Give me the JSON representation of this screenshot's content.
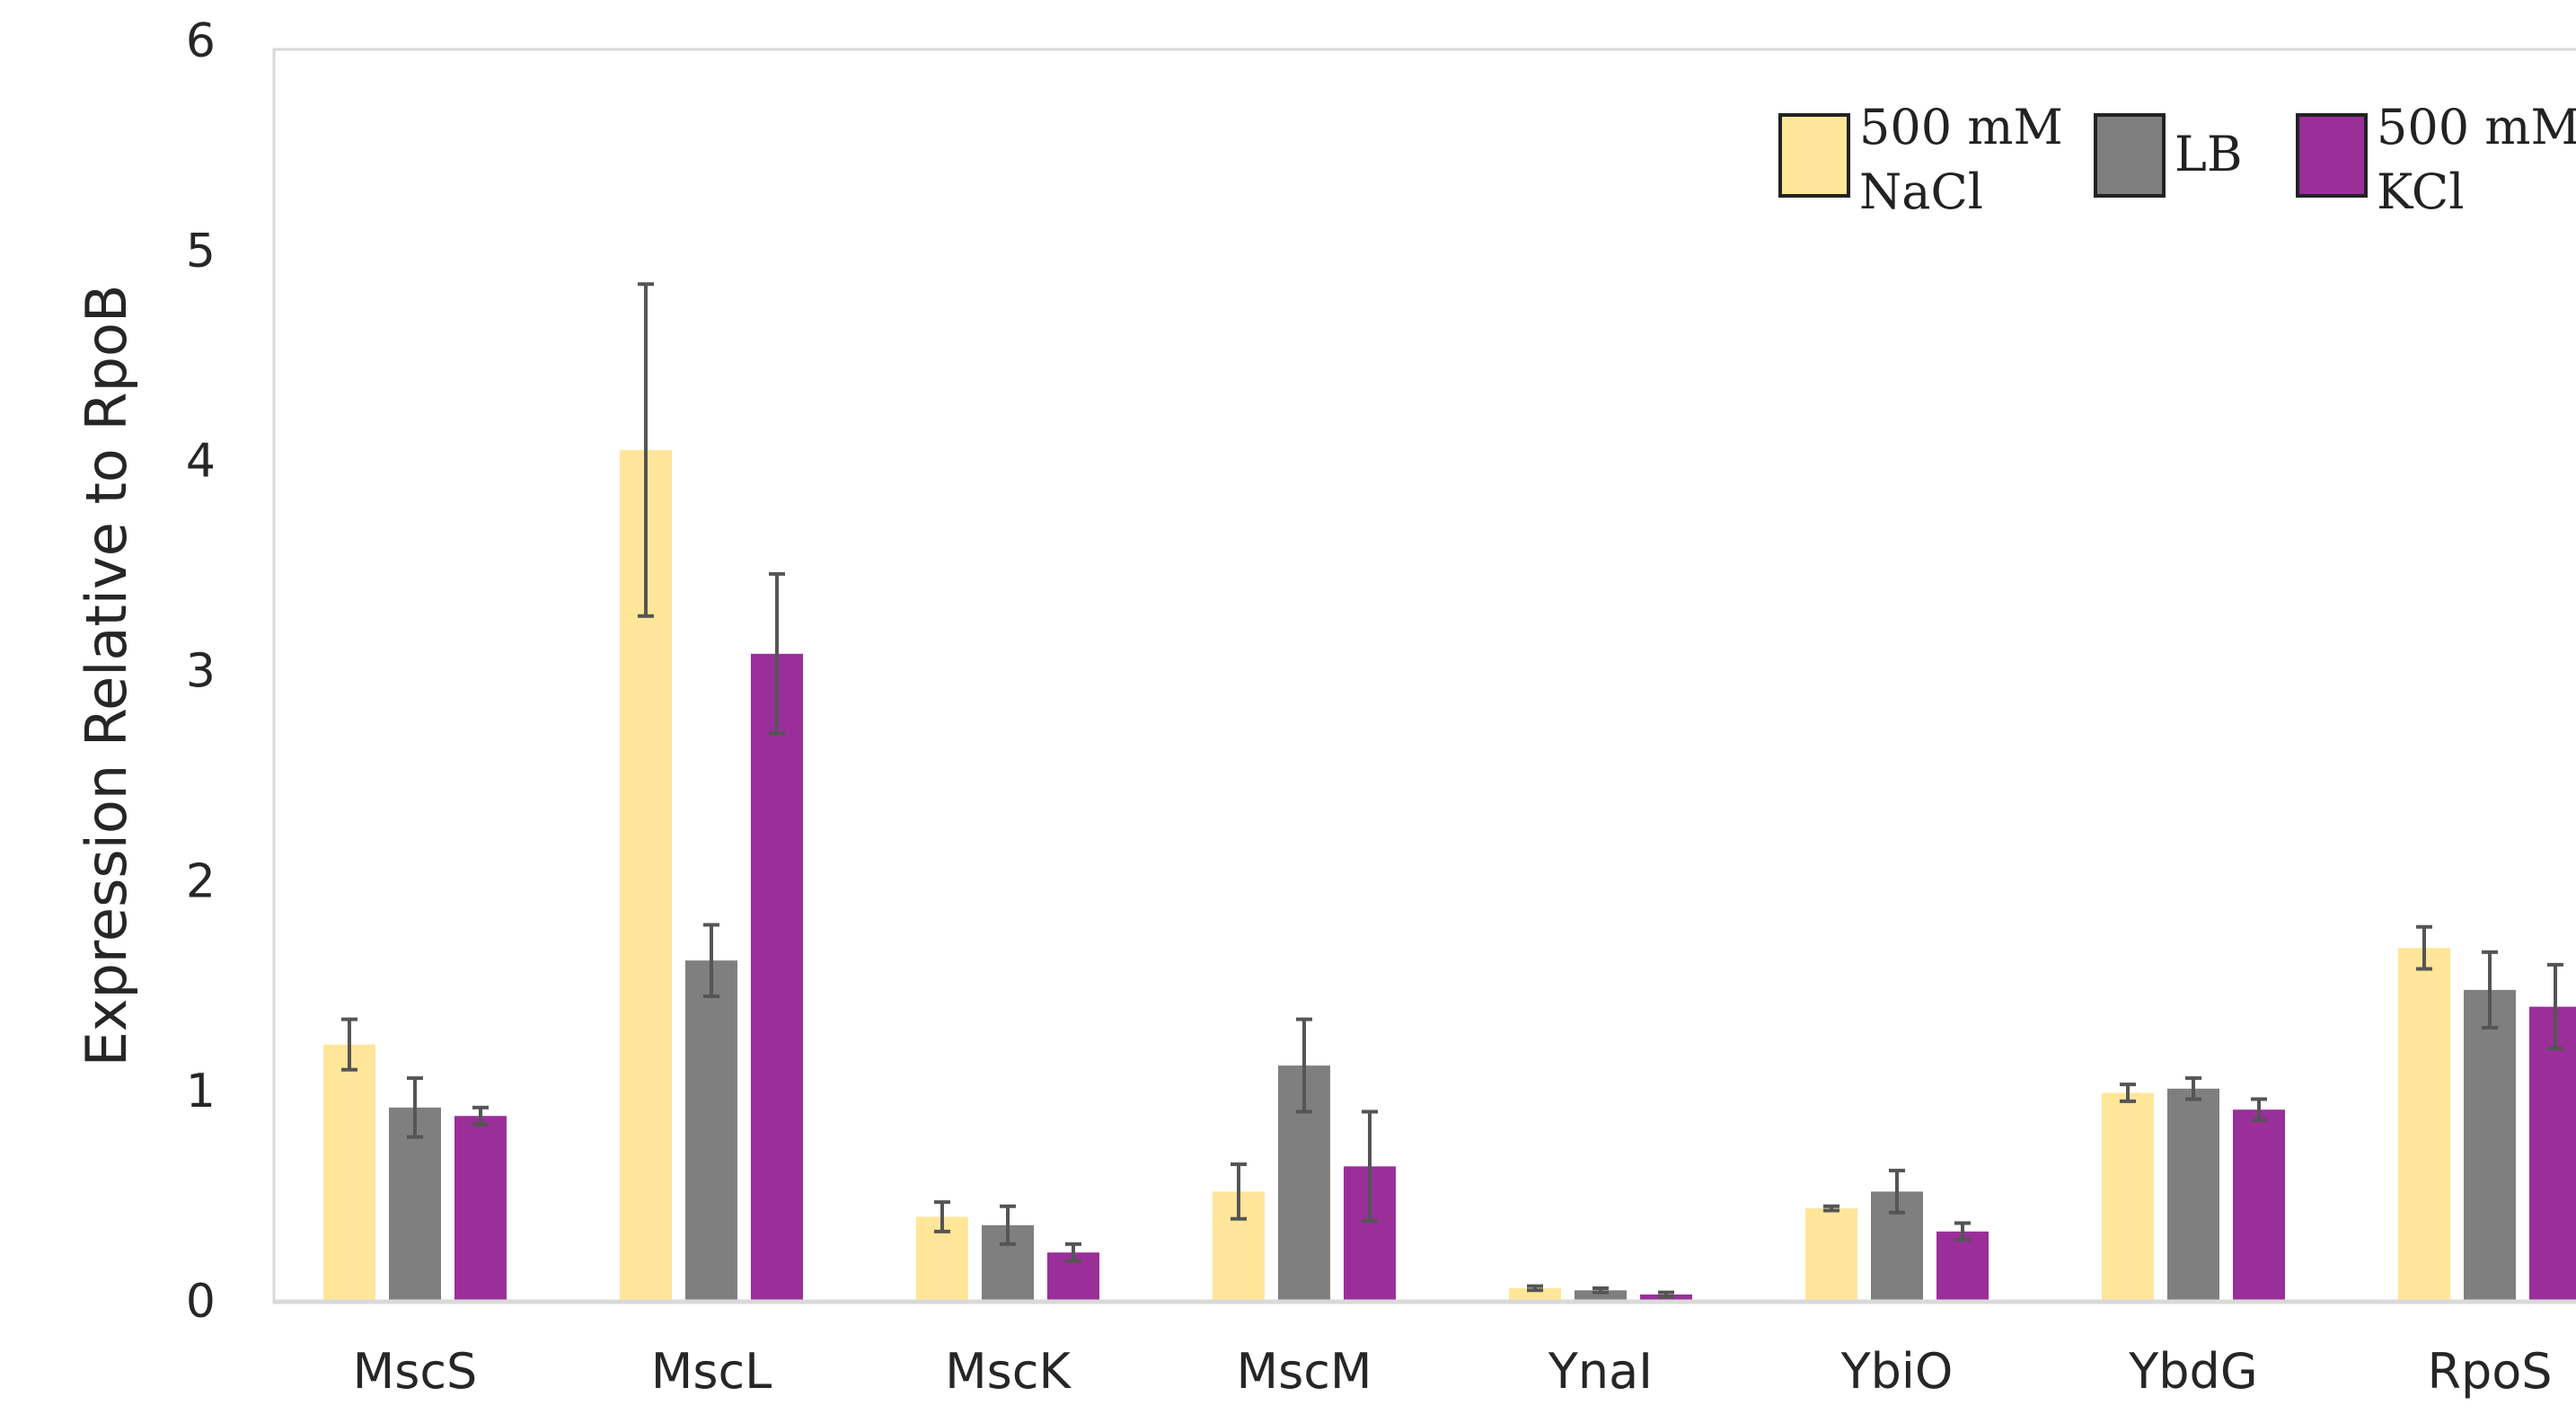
{
  "chart_data": {
    "type": "bar",
    "ylabel": "Expression Relative to RpoB",
    "xlabel": "",
    "ylim": [
      0,
      6
    ],
    "yticks": [
      0,
      1,
      2,
      3,
      4,
      5,
      6
    ],
    "grid": false,
    "legend_position": "top-right",
    "categories": [
      "MscS",
      "MscL",
      "MscK",
      "MscM",
      "YnaI",
      "YbiO",
      "YbdG",
      "RpoS"
    ],
    "series": [
      {
        "name": "500 mM NaCl",
        "legend_lines": [
          "500 mM",
          "NaCl"
        ],
        "color": "#FFE699",
        "values": [
          1.22,
          4.05,
          0.4,
          0.52,
          0.06,
          0.44,
          0.99,
          1.68
        ],
        "errors": [
          0.12,
          0.79,
          0.07,
          0.13,
          0.01,
          0.01,
          0.04,
          0.1
        ]
      },
      {
        "name": "LB",
        "legend_lines": [
          "LB"
        ],
        "color": "#7F7F7F",
        "values": [
          0.92,
          1.62,
          0.36,
          1.12,
          0.05,
          0.52,
          1.01,
          1.48
        ],
        "errors": [
          0.14,
          0.17,
          0.09,
          0.22,
          0.01,
          0.1,
          0.05,
          0.18
        ]
      },
      {
        "name": "500 mM KCl",
        "legend_lines": [
          "500 mM",
          "KCl"
        ],
        "color": "#9A2F9A",
        "values": [
          0.88,
          3.08,
          0.23,
          0.64,
          0.03,
          0.33,
          0.91,
          1.4
        ],
        "errors": [
          0.04,
          0.38,
          0.04,
          0.26,
          0.01,
          0.04,
          0.05,
          0.2
        ]
      }
    ]
  }
}
